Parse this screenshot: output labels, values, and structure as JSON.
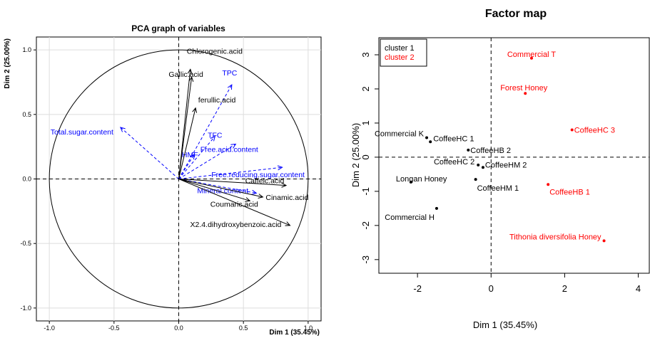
{
  "chart_data": [
    {
      "type": "scatter",
      "subtype": "pca-correlation-circle",
      "title": "PCA graph of variables",
      "xlabel": "Dim 1 (35.45%)",
      "ylabel": "Dim 2 (25.00%)",
      "xlim": [
        -1.1,
        1.1
      ],
      "ylim": [
        -1.1,
        1.1
      ],
      "xticks": [
        "-1.0",
        "-0.5",
        "0.0",
        "0.5",
        "1.0"
      ],
      "yticks": [
        "-1.0",
        "-0.5",
        "0.0",
        "0.5",
        "1.0"
      ],
      "grid": true,
      "active_color": "#000000",
      "supplementary_color": "#0000ff",
      "active_variables": [
        {
          "name": "Chlorogenic.acid",
          "x": 0.09,
          "y": 0.85
        },
        {
          "name": "Gallic.acid",
          "x": 0.1,
          "y": 0.79
        },
        {
          "name": "ferullic.acid",
          "x": 0.13,
          "y": 0.55
        },
        {
          "name": "Caffeic.acid",
          "x": 0.83,
          "y": -0.05
        },
        {
          "name": "Cinamic.acid",
          "x": 0.65,
          "y": -0.14
        },
        {
          "name": "Coumaric.acid",
          "x": 0.55,
          "y": -0.17
        },
        {
          "name": "X2.4.dihydroxybenzoic.acid",
          "x": 0.86,
          "y": -0.36
        }
      ],
      "supplementary_variables": [
        {
          "name": "TPC",
          "x": 0.41,
          "y": 0.73
        },
        {
          "name": "TFC",
          "x": 0.28,
          "y": 0.33
        },
        {
          "name": "Total.sugar.content",
          "x": -0.45,
          "y": 0.4
        },
        {
          "name": "HMF",
          "x": 0.12,
          "y": 0.19
        },
        {
          "name": "Free.acid.content",
          "x": 0.44,
          "y": 0.27
        },
        {
          "name": "Free.reducing.sugar.content",
          "x": 0.8,
          "y": 0.09
        },
        {
          "name": "Mineral.content",
          "x": 0.6,
          "y": -0.11
        }
      ]
    },
    {
      "type": "scatter",
      "subtype": "factor-map",
      "title": "Factor map",
      "xlabel": "Dim 1 (35.45%)",
      "ylabel": "Dim 2 (25.00%)",
      "xlim": [
        -3.05,
        4.3
      ],
      "ylim": [
        -3.4,
        3.5
      ],
      "xticks": [
        "-2",
        "0",
        "2",
        "4"
      ],
      "yticks": [
        "-3",
        "-2",
        "-1",
        "0",
        "1",
        "2",
        "3"
      ],
      "legend": {
        "position": "top-left",
        "entries": [
          {
            "name": "cluster 1",
            "color": "#000000"
          },
          {
            "name": "cluster 2",
            "color": "#ff0000"
          }
        ]
      },
      "series": [
        {
          "name": "cluster 1",
          "color": "#000000",
          "points": [
            {
              "label": "Commercial K",
              "x": -1.75,
              "y": 0.57
            },
            {
              "label": "CoffeeHC 1",
              "x": -1.65,
              "y": 0.45
            },
            {
              "label": "CoffeeHB 2",
              "x": -0.62,
              "y": 0.21
            },
            {
              "label": "CoffeeHC 2",
              "x": -0.35,
              "y": -0.23
            },
            {
              "label": "CoffeeHM 2",
              "x": -0.22,
              "y": -0.3
            },
            {
              "label": "CoffeeHM 1",
              "x": -0.42,
              "y": -0.65
            },
            {
              "label": "Longan Honey",
              "x": -2.18,
              "y": -0.73
            },
            {
              "label": "Commercial H",
              "x": -1.48,
              "y": -1.5
            }
          ]
        },
        {
          "name": "cluster 2",
          "color": "#ff0000",
          "points": [
            {
              "label": "Commercial T",
              "x": 1.1,
              "y": 2.9
            },
            {
              "label": "Forest Honey",
              "x": 0.93,
              "y": 1.87
            },
            {
              "label": "CoffeeHC 3",
              "x": 2.2,
              "y": 0.8
            },
            {
              "label": "CoffeeHB 1",
              "x": 1.55,
              "y": -0.8
            },
            {
              "label": "Tithonia diversifolia Honey",
              "x": 3.07,
              "y": -2.45
            }
          ]
        }
      ]
    }
  ]
}
